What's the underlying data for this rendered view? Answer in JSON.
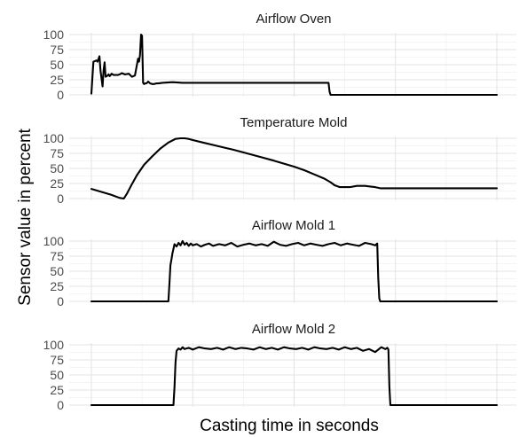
{
  "figure": {
    "xlabel": "Casting time in seconds",
    "ylabel": "Sensor value in percent"
  },
  "chart_data": [
    {
      "type": "line",
      "title": "Airflow Oven",
      "ylim": [
        0,
        100
      ],
      "yticks": [
        0,
        25,
        50,
        75,
        100
      ],
      "xlim": [
        0,
        400
      ],
      "grid": true,
      "series": [
        {
          "x": [
            0,
            2,
            5,
            6,
            8,
            9,
            11,
            12,
            13,
            14,
            16,
            17,
            18,
            20,
            22,
            24,
            26,
            28,
            30,
            33,
            37,
            40,
            43,
            46,
            47,
            48,
            49,
            50,
            51,
            52,
            53,
            54,
            55,
            56,
            58,
            60,
            62,
            64,
            66,
            70,
            80,
            90,
            100,
            110,
            120,
            130,
            140,
            150,
            160,
            170,
            180,
            190,
            200,
            210,
            220,
            230,
            234,
            235,
            236,
            260,
            300,
            350,
            400
          ],
          "y": [
            2,
            55,
            57,
            55,
            64,
            40,
            14,
            40,
            54,
            30,
            32,
            34,
            31,
            35,
            33,
            33,
            33,
            34,
            36,
            34,
            35,
            30,
            32,
            60,
            55,
            66,
            100,
            98,
            20,
            18,
            19,
            19,
            20,
            22,
            19,
            18,
            18,
            19,
            19,
            20,
            21,
            20,
            20,
            20,
            20,
            20,
            20,
            20,
            20,
            20,
            20,
            20,
            20,
            20,
            20,
            20,
            20,
            5,
            0,
            0,
            0,
            0,
            0
          ]
        }
      ]
    },
    {
      "type": "line",
      "title": "Temperature Mold",
      "ylim": [
        0,
        100
      ],
      "yticks": [
        0,
        25,
        50,
        75,
        100
      ],
      "xlim": [
        0,
        400
      ],
      "grid": true,
      "series": [
        {
          "x": [
            0,
            10,
            20,
            28,
            32,
            35,
            40,
            45,
            52,
            60,
            68,
            76,
            83,
            88,
            92,
            96,
            100,
            110,
            120,
            140,
            160,
            180,
            200,
            210,
            220,
            230,
            236,
            240,
            245,
            250,
            255,
            262,
            266,
            270,
            275,
            280,
            285,
            300,
            320,
            340,
            360,
            380,
            400
          ],
          "y": [
            16,
            11,
            6,
            1,
            0,
            8,
            24,
            39,
            56,
            70,
            83,
            93,
            99,
            100,
            100,
            99,
            97,
            93,
            89,
            81,
            72,
            63,
            53,
            47,
            40,
            33,
            27,
            22,
            19,
            19,
            19,
            21,
            21,
            21,
            20,
            19,
            17,
            17,
            17,
            17,
            17,
            17,
            17
          ]
        }
      ]
    },
    {
      "type": "line",
      "title": "Airflow Mold 1",
      "ylim": [
        0,
        100
      ],
      "yticks": [
        0,
        25,
        50,
        75,
        100
      ],
      "xlim": [
        0,
        400
      ],
      "grid": true,
      "series": [
        {
          "x": [
            0,
            30,
            60,
            76,
            77,
            78,
            79,
            80,
            81,
            82,
            84,
            86,
            88,
            90,
            92,
            94,
            96,
            98,
            100,
            104,
            108,
            112,
            116,
            120,
            126,
            132,
            138,
            144,
            150,
            156,
            162,
            168,
            174,
            180,
            186,
            192,
            198,
            204,
            210,
            216,
            222,
            228,
            234,
            240,
            246,
            252,
            258,
            264,
            270,
            276,
            280,
            282,
            283,
            284,
            285,
            300,
            350,
            400
          ],
          "y": [
            0,
            0,
            0,
            0,
            30,
            60,
            70,
            80,
            87,
            95,
            91,
            97,
            93,
            100,
            94,
            97,
            92,
            96,
            93,
            95,
            91,
            94,
            96,
            92,
            95,
            93,
            97,
            91,
            94,
            96,
            93,
            95,
            92,
            99,
            94,
            92,
            95,
            97,
            93,
            96,
            94,
            92,
            95,
            97,
            93,
            96,
            94,
            92,
            97,
            95,
            93,
            96,
            40,
            5,
            0,
            0,
            0,
            0
          ]
        }
      ]
    },
    {
      "type": "line",
      "title": "Airflow Mold 2",
      "ylim": [
        0,
        100
      ],
      "yticks": [
        0,
        25,
        50,
        75,
        100
      ],
      "xlim": [
        0,
        400
      ],
      "grid": true,
      "series": [
        {
          "x": [
            0,
            40,
            80,
            81,
            82,
            83,
            84,
            86,
            88,
            90,
            92,
            96,
            100,
            106,
            112,
            118,
            124,
            130,
            136,
            142,
            148,
            154,
            160,
            166,
            172,
            178,
            184,
            190,
            196,
            202,
            208,
            214,
            220,
            226,
            232,
            238,
            244,
            250,
            256,
            262,
            268,
            274,
            280,
            286,
            290,
            292,
            293,
            294,
            295,
            320,
            360,
            400
          ],
          "y": [
            0,
            0,
            0,
            0,
            30,
            70,
            90,
            94,
            92,
            96,
            93,
            95,
            92,
            96,
            94,
            93,
            95,
            92,
            96,
            93,
            95,
            94,
            92,
            96,
            93,
            95,
            92,
            96,
            94,
            93,
            95,
            92,
            96,
            94,
            93,
            95,
            92,
            96,
            93,
            95,
            90,
            93,
            88,
            96,
            93,
            95,
            92,
            30,
            0,
            0,
            0,
            0
          ]
        }
      ]
    }
  ]
}
